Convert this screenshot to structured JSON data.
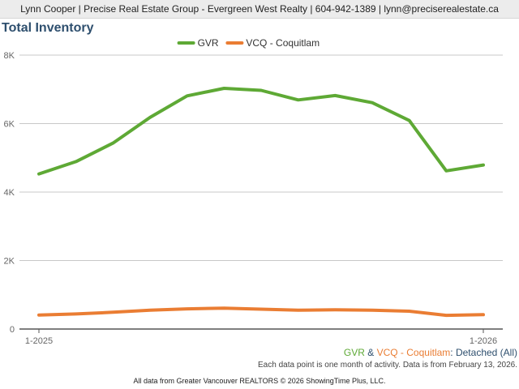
{
  "header": {
    "text": "Lynn Cooper | Precise Real Estate Group - Evergreen West Realty | 604-942-1389 | lynn@precisereаlestate.ca"
  },
  "colors": {
    "gvr": "#5ea935",
    "vcq": "#ea7d33",
    "title": "#2e4f6e"
  },
  "chart_data": {
    "type": "line",
    "title": "Total Inventory",
    "x": [
      "1-2025",
      "2-2025",
      "3-2025",
      "4-2025",
      "5-2025",
      "6-2025",
      "7-2025",
      "8-2025",
      "9-2025",
      "10-2025",
      "11-2025",
      "12-2025",
      "1-2026"
    ],
    "x_tick_labels": [
      "1-2025",
      "1-2026"
    ],
    "y_ticks": [
      "0",
      "2K",
      "4K",
      "6K",
      "8K"
    ],
    "ylim": [
      0,
      8000
    ],
    "grid": true,
    "legend_position": "top-center",
    "series": [
      {
        "name": "GVR",
        "color": "#5ea935",
        "values": [
          4530,
          4890,
          5430,
          6180,
          6810,
          7030,
          6970,
          6690,
          6820,
          6610,
          6090,
          4620,
          4790
        ]
      },
      {
        "name": "VCQ - Coquitlam",
        "color": "#ea7d33",
        "values": [
          410,
          440,
          490,
          550,
          590,
          610,
          580,
          550,
          560,
          550,
          520,
          400,
          420
        ]
      }
    ]
  },
  "caption": {
    "gvr": "GVR",
    "amp": " & ",
    "vcq": "VCQ - Coquitlam",
    "rest": ": Detached (All)"
  },
  "note": "Each data point is one month of activity. Data is from February 13, 2026.",
  "copyright": "All data from Greater Vancouver REALTORS © 2026 ShowingTime Plus, LLC."
}
